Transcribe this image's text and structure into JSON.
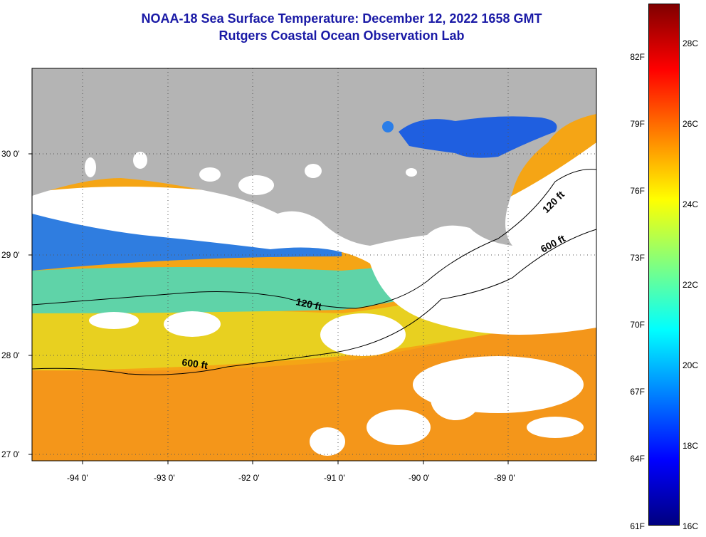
{
  "title": {
    "line1": "NOAA-18 Sea Surface Temperature:  December 12, 2022 1658 GMT",
    "line2": "Rutgers Coastal Ocean Observation Lab"
  },
  "map": {
    "land_color": "#b4b4b4",
    "cloud_color": "#ffffff",
    "lat_labels": [
      "30 0'",
      "29 0'",
      "28 0'",
      "27 0'"
    ],
    "lon_labels": [
      "-94 0'",
      "-93 0'",
      "-92 0'",
      "-91 0'",
      "-90 0'",
      "-89 0'"
    ],
    "isobath_labels": [
      "120 ft",
      "600 ft",
      "120 ft",
      "600 ft"
    ]
  },
  "colorbar": {
    "fahrenheit_labels": [
      "82F",
      "79F",
      "76F",
      "73F",
      "70F",
      "67F",
      "64F",
      "61F"
    ],
    "celsius_labels": [
      "28C",
      "26C",
      "24C",
      "22C",
      "20C",
      "18C",
      "16C"
    ],
    "colors": [
      "#000080",
      "#0000ff",
      "#0080ff",
      "#00ffff",
      "#80ff80",
      "#ffff00",
      "#ff8000",
      "#ff0000",
      "#800000"
    ]
  }
}
